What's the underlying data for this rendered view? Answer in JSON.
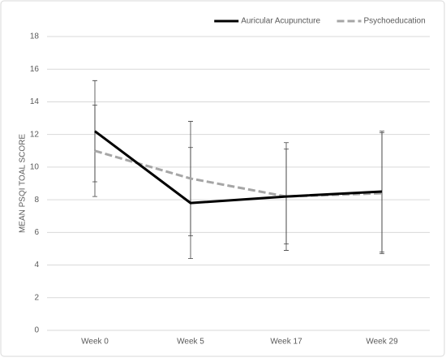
{
  "chart_data": {
    "type": "line",
    "y_label": "MEAN PSQI TOAL SCORE",
    "categories": [
      "Week 0",
      "Week 5",
      "Week 17",
      "Week 29"
    ],
    "series": [
      {
        "name": "Auricular Acupuncture",
        "color": "#000000",
        "dashed": false,
        "values": [
          12.2,
          7.8,
          8.2,
          8.5
        ],
        "errors": [
          3.1,
          3.4,
          3.3,
          3.7
        ]
      },
      {
        "name": "Psychoeducation",
        "color": "#a6a6a6",
        "dashed": true,
        "values": [
          11.0,
          9.3,
          8.2,
          8.4
        ],
        "errors": [
          2.8,
          3.5,
          2.9,
          3.7
        ]
      }
    ],
    "ylim": [
      0,
      18
    ],
    "yticks": [
      0,
      2,
      4,
      6,
      8,
      10,
      12,
      14,
      16,
      18
    ],
    "grid": true,
    "legend": "top-right"
  }
}
